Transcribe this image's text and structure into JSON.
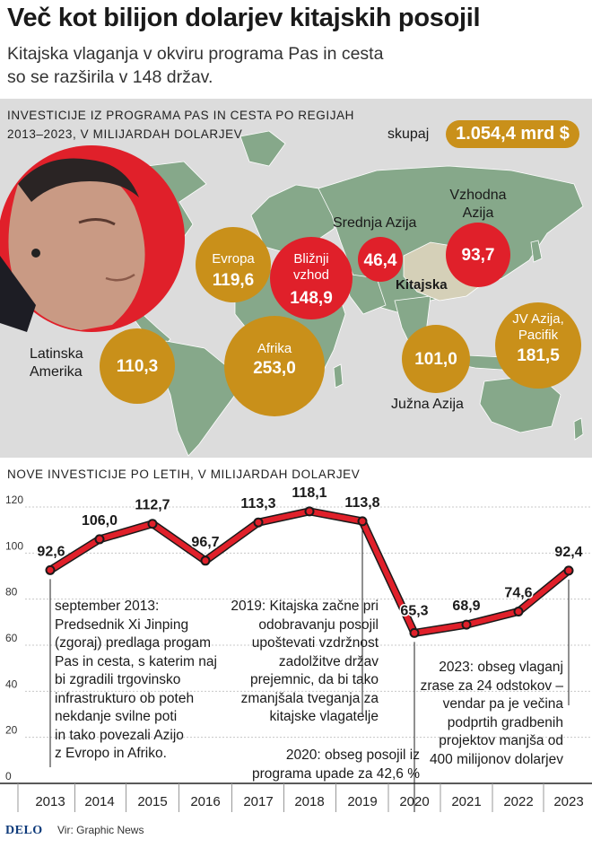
{
  "title": "Več kot bilijon dolarjev kitajskih posojil",
  "subtitle": [
    "Kitajska vlaganja v okviru programa Pas in cesta",
    "so se razširila v 148 držav."
  ],
  "map_section": {
    "heading": [
      "INVESTICIJE IZ PROGRAMA PAS IN CESTA PO REGIJAH",
      "2013–2023, V MILIJARDAH DOLARJEV"
    ],
    "total_label": "skupaj",
    "total_value": "1.054,4 mrd $",
    "china_label": "Kitajska",
    "bubble_colors": {
      "gold": "#c9901a",
      "red": "#e0202a",
      "land": "#86a88a",
      "sea": "#dcdcdc"
    },
    "regions": [
      {
        "name": "Evropa",
        "value": "119,6",
        "color": "gold"
      },
      {
        "name": "Bližnji vzhod",
        "value": "148,9",
        "color": "red"
      },
      {
        "name": "Srednja Azija",
        "value": "46,4",
        "color": "red"
      },
      {
        "name": "Vzhodna Azija",
        "value": "93,7",
        "color": "red"
      },
      {
        "name": "JV Azija, Pacifik",
        "value": "181,5",
        "color": "gold"
      },
      {
        "name": "Južna Azija",
        "value": "101,0",
        "color": "gold"
      },
      {
        "name": "Afrika",
        "value": "253,0",
        "color": "gold"
      },
      {
        "name": "Latinska Amerika",
        "value": "110,3",
        "color": "gold"
      }
    ]
  },
  "chart_section": {
    "heading": "NOVE INVESTICIJE PO LETIH, V MILIJARDAH DOLARJEV"
  },
  "chart_data": {
    "type": "line",
    "title": "NOVE INVESTICIJE PO LETIH, V MILIJARDAH DOLARJEV",
    "x": [
      "2013",
      "2014",
      "2015",
      "2016",
      "2017",
      "2018",
      "2019",
      "2020",
      "2021",
      "2022",
      "2023"
    ],
    "series": [
      {
        "values": [
          92.6,
          106.0,
          112.7,
          96.7,
          113.3,
          118.1,
          113.8,
          65.3,
          68.9,
          74.6,
          92.4
        ]
      }
    ],
    "value_labels": [
      "92,6",
      "106,0",
      "112,7",
      "96,7",
      "113,3",
      "118,1",
      "113,8",
      "65,3",
      "68,9",
      "74,6",
      "92,4"
    ],
    "ylim": [
      0,
      120
    ],
    "yticks": [
      0,
      20,
      40,
      60,
      80,
      100,
      120
    ],
    "grid": true,
    "line_color": "#e0202a",
    "annotations": [
      {
        "x": "2013",
        "text": [
          "september 2013:",
          "Predsednik Xi Jinping",
          "(zgoraj) predlaga progam",
          "Pas in cesta, s katerim naj",
          "bi zgradili trgovinsko",
          "infrastrukturo ob poteh",
          "nekdanje svilne poti",
          "in tako povezali Azijo",
          "z Evropo in Afriko."
        ]
      },
      {
        "x": "2019",
        "text": [
          "2019: Kitajska začne pri",
          "odobravanju posojil",
          "upoštevati vzdržnost",
          "zadolžitve držav",
          "prejemnic, da bi tako",
          "zmanjšala tveganja za",
          "kitajske vlagatelje"
        ]
      },
      {
        "x": "2020",
        "text": [
          "2020: obseg posojil iz",
          "programa upade za 42,6 %"
        ]
      },
      {
        "x": "2023",
        "text": [
          "2023: obseg vlaganj",
          "zrase za 24 odstokov –",
          "vendar pa je večina",
          "podprtih gradbenih",
          "projektov manjša od",
          "400 milijonov dolarjev"
        ]
      }
    ]
  },
  "footer": {
    "logo": "DELO",
    "source": "Vir: Graphic News"
  }
}
